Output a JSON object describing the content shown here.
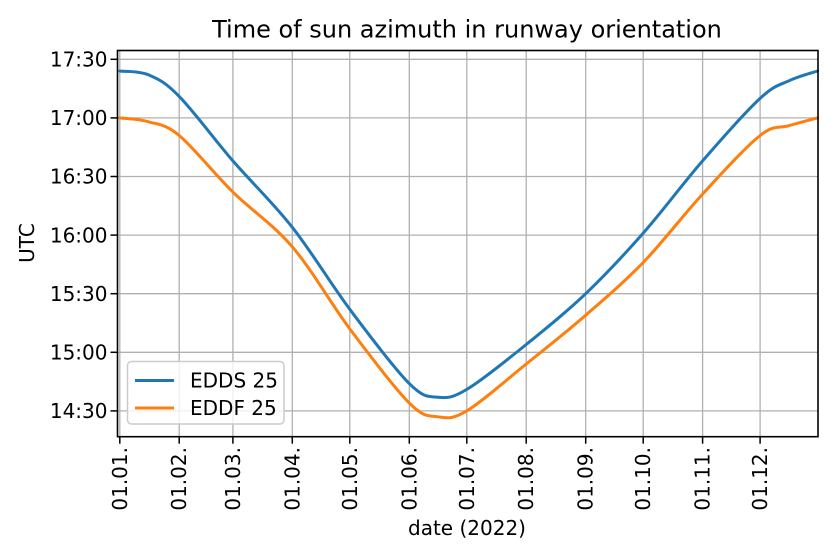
{
  "chart_data": {
    "type": "line",
    "title": "Time of sun azimuth in runway orientation",
    "xlabel": "date (2022)",
    "ylabel": "UTC",
    "grid": true,
    "legend_position": "lower left",
    "axes": {
      "x_range_days": [
        -1.2,
        364.2
      ],
      "y_range_minutes": [
        856.8,
        1054.5
      ],
      "x_ticks": {
        "labels": [
          "01.01.",
          "01.02.",
          "01.03.",
          "01.04.",
          "01.05.",
          "01.06.",
          "01.07.",
          "01.08.",
          "01.09.",
          "01.10.",
          "01.11.",
          "01.12."
        ],
        "days": [
          0,
          31,
          59,
          90,
          120,
          151,
          181,
          212,
          243,
          273,
          304,
          334
        ]
      },
      "y_ticks": {
        "labels": [
          "17:30",
          "17:00",
          "16:30",
          "16:00",
          "15:30",
          "15:00",
          "14:30"
        ]
      }
    },
    "series": [
      {
        "name": "EDDS 25",
        "color": "#1f77b4",
        "points": [
          [
            0,
            "17:24"
          ],
          [
            15,
            "17:22"
          ],
          [
            31,
            "17:11"
          ],
          [
            59,
            "16:38"
          ],
          [
            90,
            "16:04"
          ],
          [
            120,
            "15:22"
          ],
          [
            151,
            "14:44"
          ],
          [
            166,
            "14:37"
          ],
          [
            181,
            "14:41"
          ],
          [
            212,
            "15:04"
          ],
          [
            243,
            "15:30"
          ],
          [
            273,
            "16:01"
          ],
          [
            304,
            "16:38"
          ],
          [
            334,
            "17:10"
          ],
          [
            349,
            "17:19"
          ],
          [
            364,
            "17:24"
          ]
        ]
      },
      {
        "name": "EDDF 25",
        "color": "#ff7f0e",
        "points": [
          [
            0,
            "17:00"
          ],
          [
            15,
            "16:58"
          ],
          [
            31,
            "16:51"
          ],
          [
            59,
            "16:22"
          ],
          [
            90,
            "15:54"
          ],
          [
            120,
            "15:12"
          ],
          [
            151,
            "14:34"
          ],
          [
            166,
            "14:27"
          ],
          [
            181,
            "14:30"
          ],
          [
            212,
            "14:54"
          ],
          [
            243,
            "15:19"
          ],
          [
            273,
            "15:46"
          ],
          [
            304,
            "16:21"
          ],
          [
            334,
            "16:51"
          ],
          [
            349,
            "16:56"
          ],
          [
            364,
            "17:00"
          ]
        ]
      }
    ],
    "colors": {
      "grid": "#b0b0b0",
      "spine": "#000000",
      "background": "#ffffff",
      "series_0": "#1f77b4",
      "series_1": "#ff7f0e"
    }
  }
}
